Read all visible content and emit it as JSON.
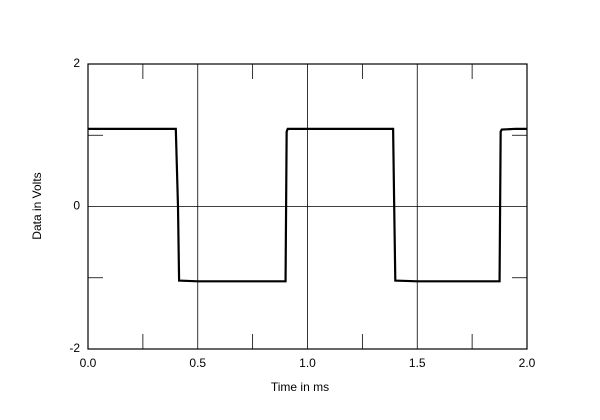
{
  "chart_data": {
    "type": "line",
    "x_label": "Time in ms",
    "y_label": "Data in Volts",
    "x": [
      0,
      0.4,
      0.41,
      0.415,
      0.5,
      0.9,
      0.905,
      0.91,
      1.39,
      1.395,
      1.4,
      1.5,
      1.875,
      1.88,
      1.885,
      1.95,
      2.0
    ],
    "series": [
      {
        "color": "#000000",
        "values": [
          1.09,
          1.09,
          0.0,
          -1.04,
          -1.05,
          -1.05,
          1.05,
          1.09,
          1.09,
          0.0,
          -1.04,
          -1.05,
          -1.05,
          1.05,
          1.08,
          1.09,
          1.09
        ]
      }
    ],
    "xlim": [
      0,
      2
    ],
    "ylim": [
      -2,
      2
    ],
    "xticks": [
      {
        "value": 0,
        "label": "0.0"
      },
      0.5,
      {
        "value": 1,
        "label": "1.0"
      },
      1.5,
      {
        "value": 2,
        "label": "2.0"
      }
    ],
    "yticks": [
      -2,
      0,
      2
    ],
    "xminorticks": [
      0.25,
      0.75,
      1.25,
      1.75
    ],
    "yminorticks": [
      -1,
      1
    ],
    "grid": true
  }
}
